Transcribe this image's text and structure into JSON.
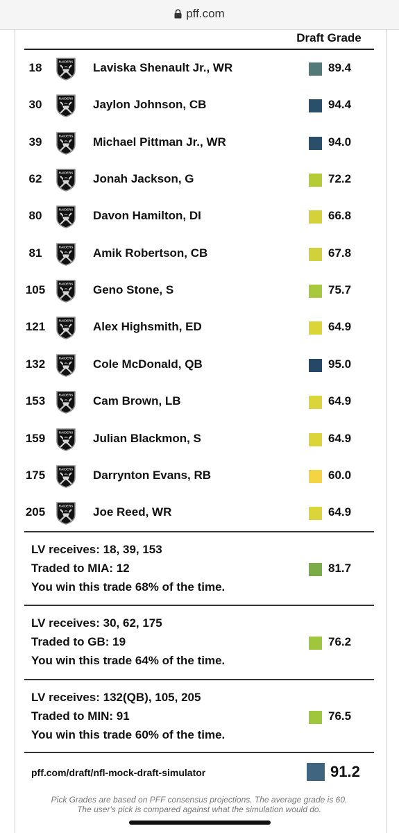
{
  "browser": {
    "url": "pff.com"
  },
  "header": {
    "draft_grade_label": "Draft Grade"
  },
  "picks": [
    {
      "pick": "18",
      "player": "Laviska Shenault Jr., WR",
      "grade": "89.4",
      "color": "#537a78"
    },
    {
      "pick": "30",
      "player": "Jaylon Johnson, CB",
      "grade": "94.4",
      "color": "#2a4f6b"
    },
    {
      "pick": "39",
      "player": "Michael Pittman Jr., WR",
      "grade": "94.0",
      "color": "#2a4f6b"
    },
    {
      "pick": "62",
      "player": "Jonah Jackson, G",
      "grade": "72.2",
      "color": "#b5cc35"
    },
    {
      "pick": "80",
      "player": "Davon Hamilton, DI",
      "grade": "66.8",
      "color": "#d4d13b"
    },
    {
      "pick": "81",
      "player": "Amik Robertson, CB",
      "grade": "67.8",
      "color": "#d0d13b"
    },
    {
      "pick": "105",
      "player": "Geno Stone, S",
      "grade": "75.7",
      "color": "#a8c83d"
    },
    {
      "pick": "121",
      "player": "Alex Highsmith, ED",
      "grade": "64.9",
      "color": "#dcd53a"
    },
    {
      "pick": "132",
      "player": "Cole McDonald, QB",
      "grade": "95.0",
      "color": "#244866"
    },
    {
      "pick": "153",
      "player": "Cam Brown, LB",
      "grade": "64.9",
      "color": "#dcd53a"
    },
    {
      "pick": "159",
      "player": "Julian Blackmon, S",
      "grade": "64.9",
      "color": "#dcd53a"
    },
    {
      "pick": "175",
      "player": "Darrynton Evans, RB",
      "grade": "60.0",
      "color": "#f5d443"
    },
    {
      "pick": "205",
      "player": "Joe Reed, WR",
      "grade": "64.9",
      "color": "#dcd53a"
    }
  ],
  "trades": [
    {
      "receives": "LV receives: 18, 39, 153",
      "traded_to": "Traded to MIA: 12",
      "win": "You win this trade 68% of the time.",
      "grade": "81.7",
      "color": "#7aad48"
    },
    {
      "receives": "LV receives: 30, 62, 175",
      "traded_to": "Traded to GB: 19",
      "win": "You win this trade 64% of the time.",
      "grade": "76.2",
      "color": "#a0c73c"
    },
    {
      "receives": "LV receives: 132(QB), 105, 205",
      "traded_to": "Traded to MIN: 91",
      "win": "You win this trade 60% of the time.",
      "grade": "76.5",
      "color": "#a0c73c"
    }
  ],
  "footer": {
    "link": "pff.com/draft/nfl-mock-draft-simulator",
    "overall_grade": "91.2",
    "overall_color": "#3f6580",
    "note_line1": "Pick Grades are based on PFF consensus projections. The average grade is 60.",
    "note_line2": "The user's pick is compared against what the simulation would do."
  },
  "team_logo_icon": "raiders-shield-icon",
  "team_logo_text": "RAIDERS"
}
